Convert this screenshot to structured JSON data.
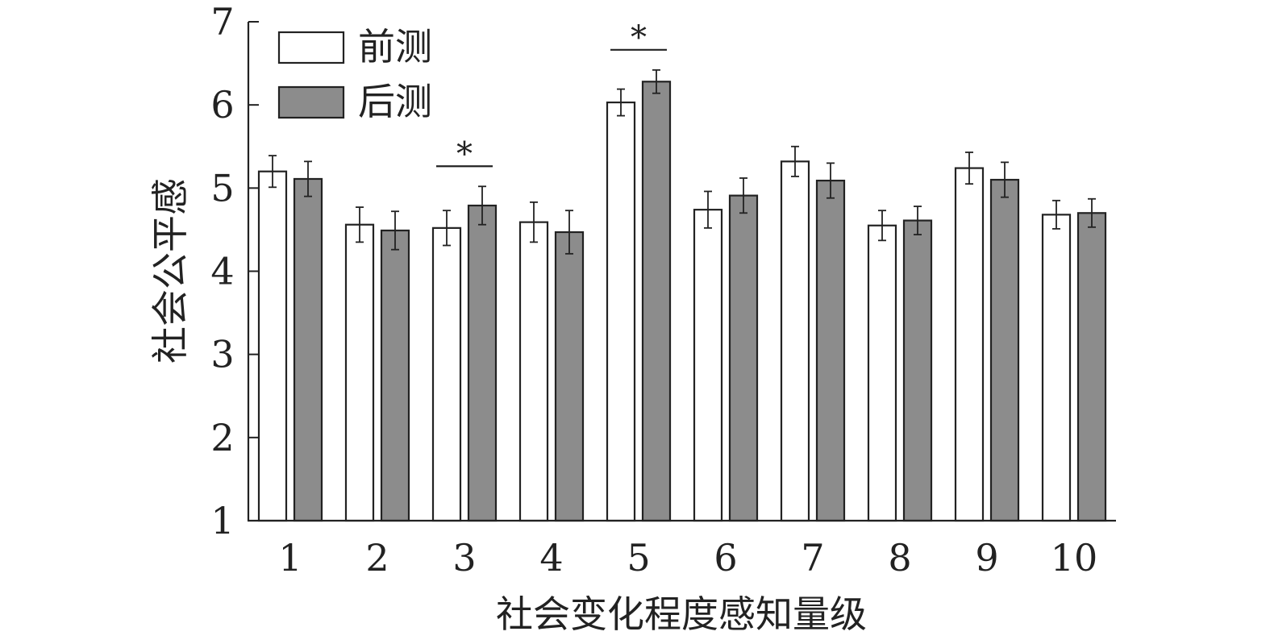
{
  "chart_data": {
    "type": "bar",
    "xlabel": "社会变化程度感知量级",
    "ylabel": "社会公平感",
    "ylim": [
      1,
      7
    ],
    "yticks": [
      "1",
      "2",
      "3",
      "4",
      "5",
      "6",
      "7"
    ],
    "categories": [
      "1",
      "2",
      "3",
      "4",
      "5",
      "6",
      "7",
      "8",
      "9",
      "10"
    ],
    "series": [
      {
        "name": "前测",
        "color": "#ffffff",
        "values": [
          5.2,
          4.56,
          4.52,
          4.59,
          6.03,
          4.74,
          5.32,
          4.55,
          5.24,
          4.68
        ],
        "error": [
          0.19,
          0.21,
          0.21,
          0.24,
          0.16,
          0.22,
          0.18,
          0.18,
          0.19,
          0.17
        ]
      },
      {
        "name": "后测",
        "color": "#8c8c8c",
        "values": [
          5.11,
          4.49,
          4.79,
          4.47,
          6.28,
          4.91,
          5.09,
          4.61,
          5.1,
          4.7
        ],
        "error": [
          0.21,
          0.23,
          0.23,
          0.26,
          0.14,
          0.21,
          0.21,
          0.17,
          0.21,
          0.17
        ]
      }
    ],
    "significance": [
      {
        "category": "3",
        "label": "*"
      },
      {
        "category": "5",
        "label": "*"
      }
    ],
    "legend_position": "top-left",
    "grid": false
  }
}
